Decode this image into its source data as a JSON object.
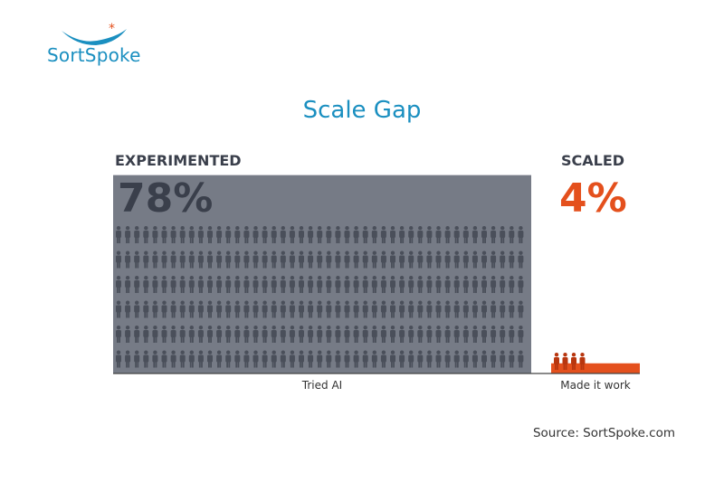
{
  "logo": {
    "text": "SortSpoke"
  },
  "title": "Scale Gap",
  "chart_data": {
    "type": "bar",
    "title": "Scale Gap",
    "categories": [
      "Tried AI",
      "Made it work"
    ],
    "series_labels": [
      "EXPERIMENTED",
      "SCALED"
    ],
    "value_labels": [
      "78%",
      "4%"
    ],
    "values": [
      78,
      4
    ],
    "ylim": [
      0,
      100
    ],
    "colors": [
      "#767b86",
      "#e4501d"
    ],
    "label_colors": [
      "#3a3f4b",
      "#e4501d"
    ]
  },
  "source": "Source: SortSpoke.com"
}
